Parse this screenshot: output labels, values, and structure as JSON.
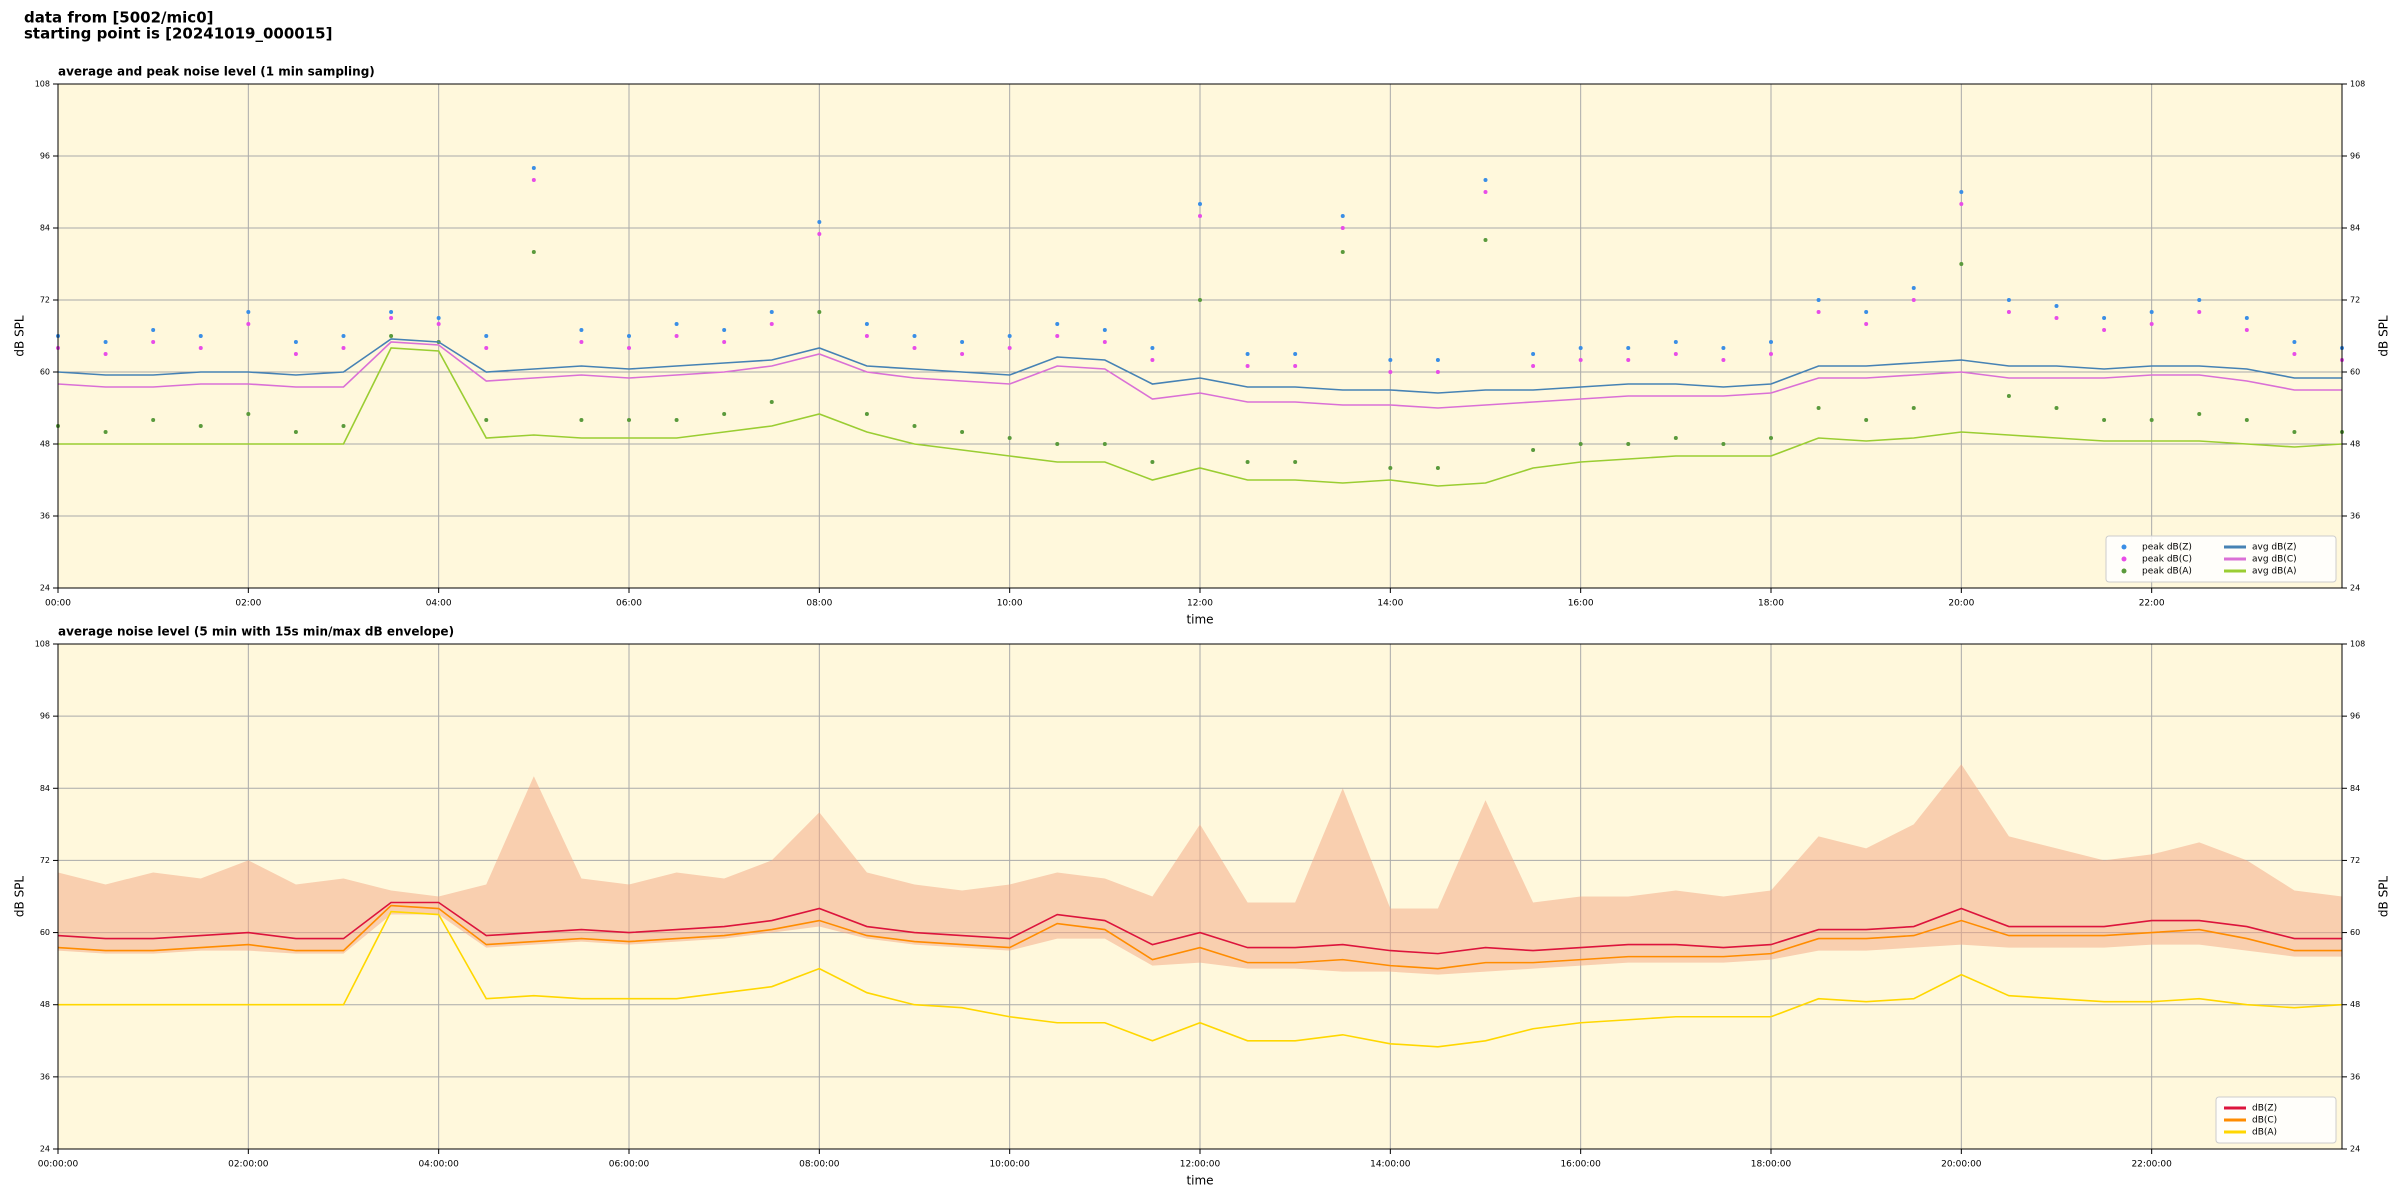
{
  "header": {
    "lines": [
      "data from [5002/mic0]",
      "starting point is [20241019_000015]"
    ]
  },
  "chart_data": [
    {
      "type": "line",
      "title": "average and peak noise level (1 min sampling)",
      "xlabel": "time",
      "ylabel": "dB SPL",
      "xlim": [
        0,
        24
      ],
      "ylim": [
        24,
        108
      ],
      "xticks": [
        {
          "value": 0,
          "label": "00:00"
        },
        {
          "value": 2,
          "label": "02:00"
        },
        {
          "value": 4,
          "label": "04:00"
        },
        {
          "value": 6,
          "label": "06:00"
        },
        {
          "value": 8,
          "label": "08:00"
        },
        {
          "value": 10,
          "label": "10:00"
        },
        {
          "value": 12,
          "label": "12:00"
        },
        {
          "value": 14,
          "label": "14:00"
        },
        {
          "value": 16,
          "label": "16:00"
        },
        {
          "value": 18,
          "label": "18:00"
        },
        {
          "value": 20,
          "label": "20:00"
        },
        {
          "value": 22,
          "label": "22:00"
        }
      ],
      "yticks": [
        24,
        36,
        48,
        60,
        72,
        84,
        96,
        108
      ],
      "grid": true,
      "legend": "lower right",
      "legend_columns": 2,
      "x": [
        0,
        0.5,
        1,
        1.5,
        2,
        2.5,
        3,
        3.5,
        4,
        4.5,
        5,
        5.5,
        6,
        6.5,
        7,
        7.5,
        8,
        8.5,
        9,
        9.5,
        10,
        10.5,
        11,
        11.5,
        12,
        12.5,
        13,
        13.5,
        14,
        14.5,
        15,
        15.5,
        16,
        16.5,
        17,
        17.5,
        18,
        18.5,
        19,
        19.5,
        20,
        20.5,
        21,
        21.5,
        22,
        22.5,
        23,
        23.5,
        24
      ],
      "series": [
        {
          "name": "peak dB(Z)",
          "kind": "scatter",
          "color": "#3a8ee6",
          "values": [
            66,
            65,
            67,
            66,
            70,
            65,
            66,
            70,
            69,
            66,
            94,
            67,
            66,
            68,
            67,
            70,
            85,
            68,
            66,
            65,
            66,
            68,
            67,
            64,
            88,
            63,
            63,
            86,
            62,
            62,
            92,
            63,
            64,
            64,
            65,
            64,
            65,
            72,
            70,
            74,
            90,
            72,
            71,
            69,
            70,
            72,
            69,
            65,
            64
          ]
        },
        {
          "name": "peak dB(C)",
          "kind": "scatter",
          "color": "#e84ce8",
          "values": [
            64,
            63,
            65,
            64,
            68,
            63,
            64,
            69,
            68,
            64,
            92,
            65,
            64,
            66,
            65,
            68,
            83,
            66,
            64,
            63,
            64,
            66,
            65,
            62,
            86,
            61,
            61,
            84,
            60,
            60,
            90,
            61,
            62,
            62,
            63,
            62,
            63,
            70,
            68,
            72,
            88,
            70,
            69,
            67,
            68,
            70,
            67,
            63,
            62
          ]
        },
        {
          "name": "peak dB(A)",
          "kind": "scatter",
          "color": "#5a9a3c",
          "values": [
            51,
            50,
            52,
            51,
            53,
            50,
            51,
            66,
            65,
            52,
            80,
            52,
            52,
            52,
            53,
            55,
            70,
            53,
            51,
            50,
            49,
            48,
            48,
            45,
            72,
            45,
            45,
            80,
            44,
            44,
            82,
            47,
            48,
            48,
            49,
            48,
            49,
            54,
            52,
            54,
            78,
            56,
            54,
            52,
            52,
            53,
            52,
            50,
            50
          ]
        },
        {
          "name": "avg dB(Z)",
          "kind": "line",
          "color": "#4682b4",
          "values": [
            60,
            59.5,
            59.5,
            60,
            60,
            59.5,
            60,
            65.5,
            65,
            60,
            60.5,
            61,
            60.5,
            61,
            61.5,
            62,
            64,
            61,
            60.5,
            60,
            59.5,
            62.5,
            62,
            58,
            59,
            57.5,
            57.5,
            57,
            57,
            56.5,
            57,
            57,
            57.5,
            58,
            58,
            57.5,
            58,
            61,
            61,
            61.5,
            62,
            61,
            61,
            60.5,
            61,
            61,
            60.5,
            59,
            59
          ]
        },
        {
          "name": "avg dB(C)",
          "kind": "line",
          "color": "#da70d6",
          "values": [
            58,
            57.5,
            57.5,
            58,
            58,
            57.5,
            57.5,
            65,
            64.5,
            58.5,
            59,
            59.5,
            59,
            59.5,
            60,
            61,
            63,
            60,
            59,
            58.5,
            58,
            61,
            60.5,
            55.5,
            56.5,
            55,
            55,
            54.5,
            54.5,
            54,
            54.5,
            55,
            55.5,
            56,
            56,
            56,
            56.5,
            59,
            59,
            59.5,
            60,
            59,
            59,
            59,
            59.5,
            59.5,
            58.5,
            57,
            57
          ]
        },
        {
          "name": "avg dB(A)",
          "kind": "line",
          "color": "#9acd32",
          "values": [
            48,
            48,
            48,
            48,
            48,
            48,
            48,
            64,
            63.5,
            49,
            49.5,
            49,
            49,
            49,
            50,
            51,
            53,
            50,
            48,
            47,
            46,
            45,
            45,
            42,
            44,
            42,
            42,
            41.5,
            42,
            41,
            41.5,
            44,
            45,
            45.5,
            46,
            46,
            46,
            49,
            48.5,
            49,
            50,
            49.5,
            49,
            48.5,
            48.5,
            48.5,
            48,
            47.5,
            48
          ]
        }
      ]
    },
    {
      "type": "line",
      "title": "average noise level (5 min with 15s min/max dB envelope)",
      "xlabel": "time",
      "ylabel": "dB SPL",
      "xlim": [
        0,
        24
      ],
      "ylim": [
        24,
        108
      ],
      "xticks": [
        {
          "value": 0,
          "label": "00:00:00"
        },
        {
          "value": 2,
          "label": "02:00:00"
        },
        {
          "value": 4,
          "label": "04:00:00"
        },
        {
          "value": 6,
          "label": "06:00:00"
        },
        {
          "value": 8,
          "label": "08:00:00"
        },
        {
          "value": 10,
          "label": "10:00:00"
        },
        {
          "value": 12,
          "label": "12:00:00"
        },
        {
          "value": 14,
          "label": "14:00:00"
        },
        {
          "value": 16,
          "label": "16:00:00"
        },
        {
          "value": 18,
          "label": "18:00:00"
        },
        {
          "value": 20,
          "label": "20:00:00"
        },
        {
          "value": 22,
          "label": "22:00:00"
        }
      ],
      "yticks": [
        24,
        36,
        48,
        60,
        72,
        84,
        96,
        108
      ],
      "grid": true,
      "legend": "lower right",
      "legend_columns": 1,
      "x": [
        0,
        0.5,
        1,
        1.5,
        2,
        2.5,
        3,
        3.5,
        4,
        4.5,
        5,
        5.5,
        6,
        6.5,
        7,
        7.5,
        8,
        8.5,
        9,
        9.5,
        10,
        10.5,
        11,
        11.5,
        12,
        12.5,
        13,
        13.5,
        14,
        14.5,
        15,
        15.5,
        16,
        16.5,
        17,
        17.5,
        18,
        18.5,
        19,
        19.5,
        20,
        20.5,
        21,
        21.5,
        22,
        22.5,
        23,
        23.5,
        24
      ],
      "envelope": {
        "color": "#f4a582",
        "max": [
          70,
          68,
          70,
          69,
          72,
          68,
          69,
          67,
          66,
          68,
          86,
          69,
          68,
          70,
          69,
          72,
          80,
          70,
          68,
          67,
          68,
          70,
          69,
          66,
          78,
          65,
          65,
          84,
          64,
          64,
          82,
          65,
          66,
          66,
          67,
          66,
          67,
          76,
          74,
          78,
          88,
          76,
          74,
          72,
          73,
          75,
          72,
          67,
          66
        ],
        "min": [
          57,
          56.5,
          56.5,
          57,
          57,
          56.5,
          56.5,
          63,
          63,
          57.5,
          58,
          58.5,
          58,
          58.5,
          59,
          60,
          61,
          59,
          58,
          57.5,
          57,
          59,
          59,
          54.5,
          55,
          54,
          54,
          53.5,
          53.5,
          53,
          53.5,
          54,
          54.5,
          55,
          55,
          55,
          55.5,
          57,
          57,
          57.5,
          58,
          57.5,
          57.5,
          57.5,
          58,
          58,
          57,
          56,
          56
        ]
      },
      "series": [
        {
          "name": "dB(Z)",
          "color": "#dc143c",
          "values": [
            59.5,
            59,
            59,
            59.5,
            60,
            59,
            59,
            65,
            65,
            59.5,
            60,
            60.5,
            60,
            60.5,
            61,
            62,
            64,
            61,
            60,
            59.5,
            59,
            63,
            62,
            58,
            60,
            57.5,
            57.5,
            58,
            57,
            56.5,
            57.5,
            57,
            57.5,
            58,
            58,
            57.5,
            58,
            60.5,
            60.5,
            61,
            64,
            61,
            61,
            61,
            62,
            62,
            61,
            59,
            59
          ]
        },
        {
          "name": "dB(C)",
          "color": "#ff8c00",
          "values": [
            57.5,
            57,
            57,
            57.5,
            58,
            57,
            57,
            64.5,
            64,
            58,
            58.5,
            59,
            58.5,
            59,
            59.5,
            60.5,
            62,
            59.5,
            58.5,
            58,
            57.5,
            61.5,
            60.5,
            55.5,
            57.5,
            55,
            55,
            55.5,
            54.5,
            54,
            55,
            55,
            55.5,
            56,
            56,
            56,
            56.5,
            59,
            59,
            59.5,
            62,
            59.5,
            59.5,
            59.5,
            60,
            60.5,
            59,
            57,
            57
          ]
        },
        {
          "name": "dB(A)",
          "color": "#ffd700",
          "values": [
            48,
            48,
            48,
            48,
            48,
            48,
            48,
            63.5,
            63,
            49,
            49.5,
            49,
            49,
            49,
            50,
            51,
            54,
            50,
            48,
            47.5,
            46,
            45,
            45,
            42,
            45,
            42,
            42,
            43,
            41.5,
            41,
            42,
            44,
            45,
            45.5,
            46,
            46,
            46,
            49,
            48.5,
            49,
            53,
            49.5,
            49,
            48.5,
            48.5,
            49,
            48,
            47.5,
            48
          ]
        }
      ]
    }
  ]
}
